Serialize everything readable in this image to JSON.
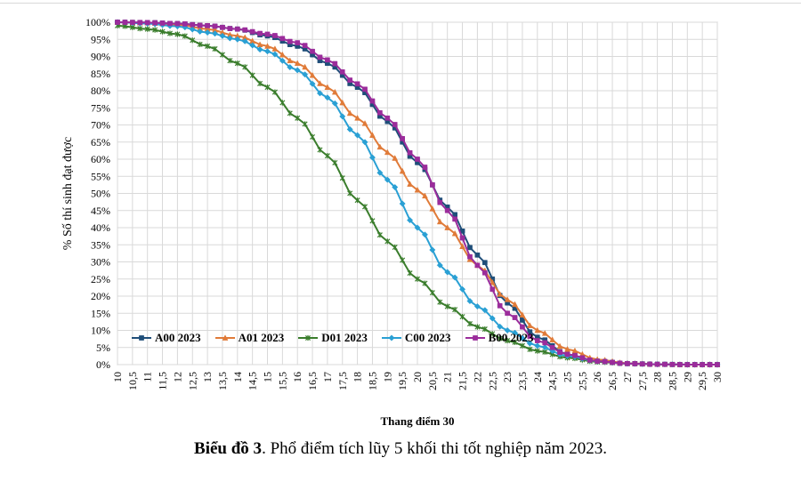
{
  "chart_data": {
    "type": "line",
    "title": "",
    "xlabel": "Thang điểm 30",
    "ylabel": "% Số thí sinh đạt được",
    "x_tick_labels": [
      "10",
      "10,5",
      "11",
      "11,5",
      "12",
      "12,5",
      "13",
      "13,5",
      "14",
      "14,5",
      "15",
      "15,5",
      "16",
      "16,5",
      "17",
      "17,5",
      "18",
      "18,5",
      "19",
      "19,5",
      "20",
      "20,5",
      "21",
      "21,5",
      "22",
      "22,5",
      "23",
      "23,5",
      "24",
      "24,5",
      "25",
      "25,5",
      "26",
      "26,5",
      "27",
      "27,5",
      "28",
      "28,5",
      "29",
      "29,5",
      "30"
    ],
    "y_tick_labels": [
      "0%",
      "5%",
      "10%",
      "15%",
      "20%",
      "25%",
      "30%",
      "35%",
      "40%",
      "45%",
      "50%",
      "55%",
      "60%",
      "65%",
      "70%",
      "75%",
      "80%",
      "85%",
      "90%",
      "95%",
      "100%"
    ],
    "xlim": [
      10,
      30
    ],
    "ylim": [
      0,
      100
    ],
    "grid": true,
    "legend_position": "bottom-left",
    "series": [
      {
        "name": "A00 2023",
        "color": "#1f4e79",
        "marker": "square",
        "x": [
          10,
          11,
          12,
          13,
          14,
          15,
          16,
          17,
          18,
          19,
          20,
          21,
          22,
          23,
          24,
          25,
          26,
          27,
          28,
          29,
          30
        ],
        "values": [
          100,
          99.9,
          99.6,
          99,
          98,
          96,
          93,
          88,
          81,
          71,
          59,
          46,
          32,
          18,
          8,
          3,
          1,
          0.3,
          0.1,
          0,
          0
        ]
      },
      {
        "name": "A01 2023",
        "color": "#e07b39",
        "marker": "triangle",
        "x": [
          10,
          11,
          12,
          13,
          14,
          15,
          16,
          17,
          18,
          19,
          20,
          21,
          22,
          23,
          24,
          25,
          26,
          27,
          28,
          29,
          30
        ],
        "values": [
          100,
          99.8,
          99.3,
          98,
          96,
          93,
          88,
          81,
          72,
          62,
          51,
          40,
          29,
          19,
          10,
          4.5,
          1.5,
          0.4,
          0.1,
          0,
          0
        ]
      },
      {
        "name": "D01 2023",
        "color": "#3a7d2c",
        "marker": "star",
        "x": [
          10,
          11,
          12,
          13,
          14,
          15,
          16,
          17,
          18,
          19,
          20,
          21,
          22,
          23,
          24,
          25,
          26,
          27,
          28,
          29,
          30
        ],
        "values": [
          99,
          98,
          96.5,
          93,
          88,
          81,
          72,
          61,
          48,
          36,
          25,
          17,
          11,
          7,
          4,
          2,
          0.8,
          0.3,
          0.1,
          0,
          0
        ]
      },
      {
        "name": "C00 2023",
        "color": "#2aa0d4",
        "marker": "diamond",
        "x": [
          10,
          11,
          12,
          13,
          14,
          15,
          16,
          17,
          18,
          19,
          20,
          21,
          22,
          23,
          24,
          25,
          26,
          27,
          28,
          29,
          30
        ],
        "values": [
          100,
          99.6,
          98.8,
          97,
          95,
          91.5,
          86,
          78,
          67,
          54,
          40,
          27,
          17,
          10,
          5.5,
          2.5,
          1,
          0.3,
          0.1,
          0,
          0
        ]
      },
      {
        "name": "B00 2023",
        "color": "#9b2c9b",
        "marker": "square",
        "x": [
          10,
          11,
          12,
          13,
          14,
          15,
          16,
          17,
          18,
          19,
          20,
          21,
          22,
          23,
          24,
          25,
          26,
          27,
          28,
          29,
          30
        ],
        "values": [
          100,
          99.9,
          99.6,
          99,
          98,
          96.5,
          94,
          89,
          82,
          72,
          60,
          45,
          29,
          15,
          7,
          3,
          1,
          0.3,
          0.1,
          0,
          0
        ]
      }
    ]
  },
  "caption": {
    "bold": "Biểu đồ 3",
    "rest": ". Phổ điểm tích lũy 5 khối thi tốt nghiệp năm 2023."
  }
}
